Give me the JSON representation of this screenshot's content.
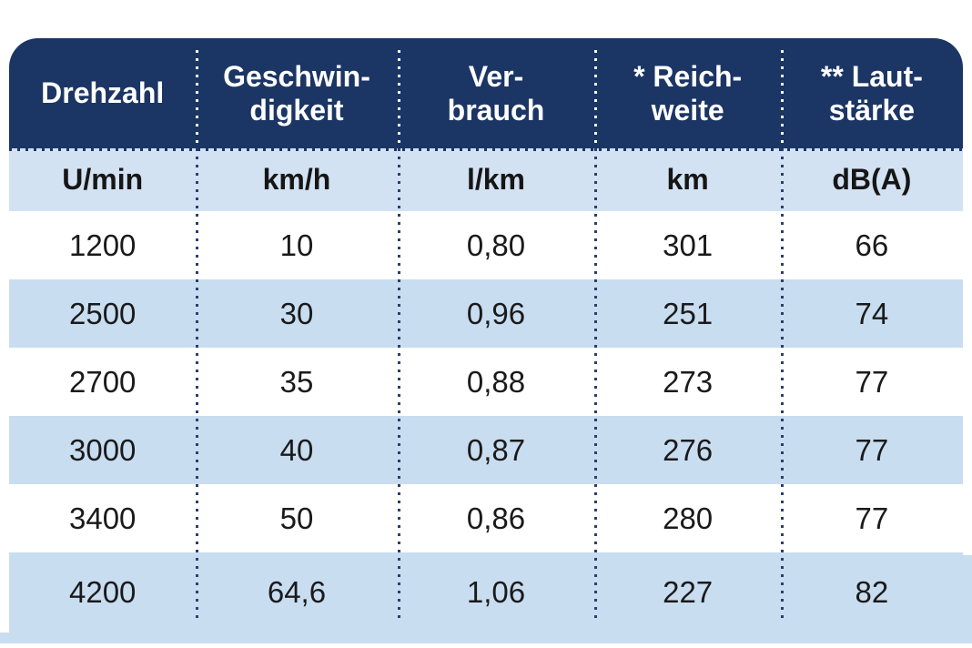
{
  "colors": {
    "header_bg": "#1b3564",
    "header_text": "#ffffff",
    "unit_row_bg": "#d3e2f3",
    "zebra_row_bg": "#c9ddf1",
    "row_bg": "#ffffff",
    "body_text": "#1a1a1a"
  },
  "table": {
    "columns": [
      {
        "header_lines": [
          "Drehzahl",
          ""
        ],
        "unit": "U/min"
      },
      {
        "header_lines": [
          "Geschwin-",
          "digkeit"
        ],
        "unit": "km/h"
      },
      {
        "header_lines": [
          "Ver-",
          "brauch"
        ],
        "unit": "l/km"
      },
      {
        "header_lines": [
          "* Reich-",
          "weite"
        ],
        "unit": "km"
      },
      {
        "header_lines": [
          "** Laut-",
          "stärke"
        ],
        "unit": "dB(A)"
      }
    ],
    "footnote_markers": [
      "*",
      "**"
    ],
    "rows": [
      [
        "1200",
        "10",
        "0,80",
        "301",
        "66"
      ],
      [
        "2500",
        "30",
        "0,96",
        "251",
        "74"
      ],
      [
        "2700",
        "35",
        "0,88",
        "273",
        "77"
      ],
      [
        "3000",
        "40",
        "0,87",
        "276",
        "77"
      ],
      [
        "3400",
        "50",
        "0,86",
        "280",
        "77"
      ],
      [
        "4200",
        "64,6",
        "1,06",
        "227",
        "82"
      ]
    ]
  }
}
